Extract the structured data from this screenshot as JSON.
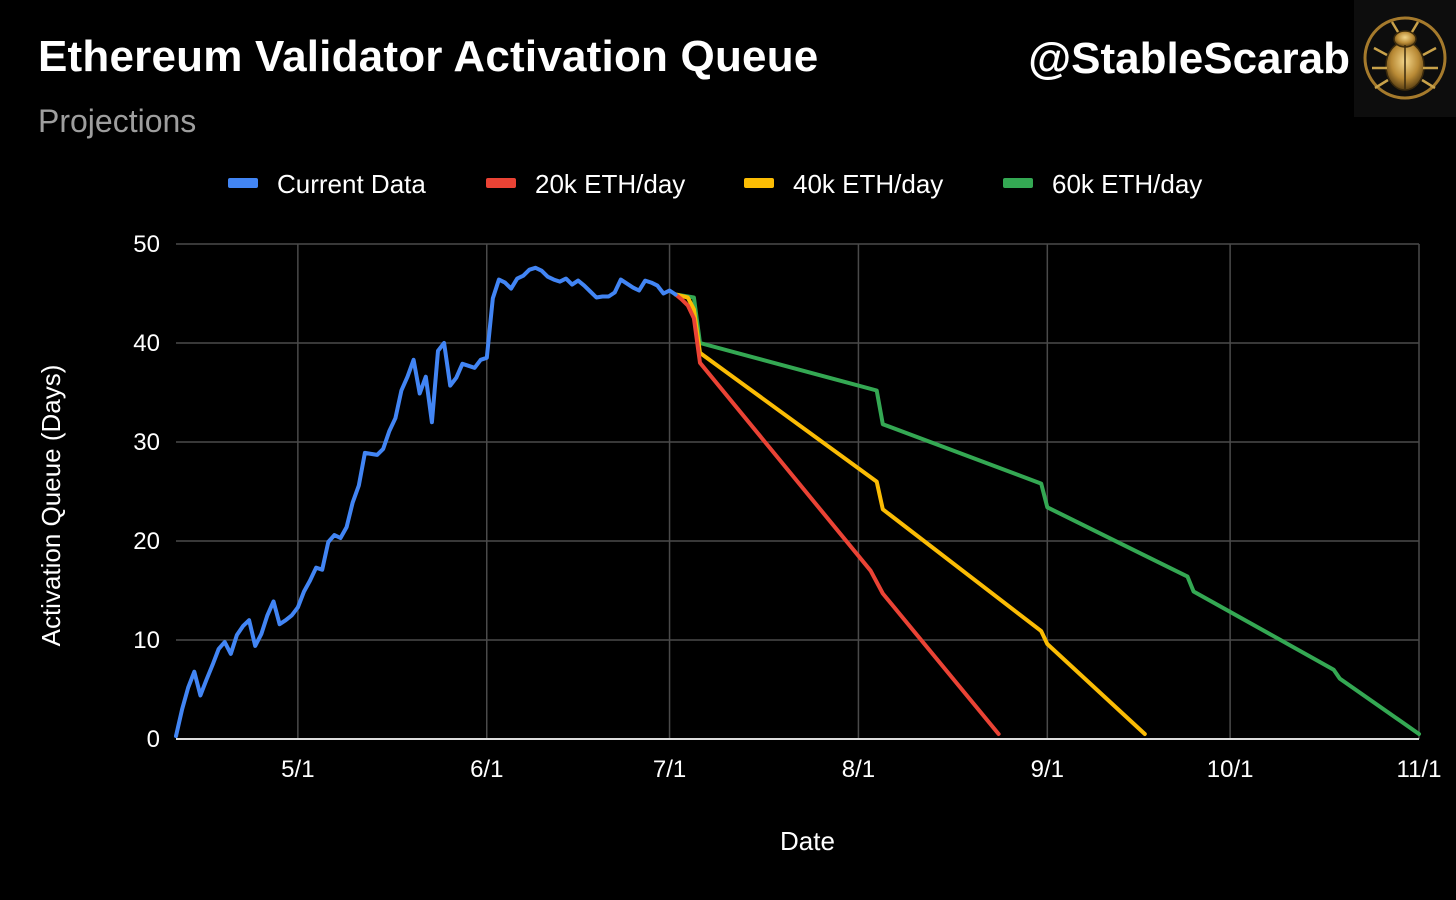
{
  "header": {
    "title": "Ethereum Validator Activation Queue",
    "subtitle": "Projections",
    "handle": "@StableScarab"
  },
  "logo": {
    "icon": "scarab-beetle-icon",
    "color": "#c9a24a"
  },
  "chart_data": {
    "type": "line",
    "title": "Ethereum Validator Activation Queue",
    "subtitle": "Projections",
    "xlabel": "Date",
    "ylabel": "Activation Queue (Days)",
    "ylim": [
      0,
      50
    ],
    "yticks": [
      0,
      10,
      20,
      30,
      40,
      50
    ],
    "xlim": [
      "2025-04-11",
      "2025-11-01"
    ],
    "xticks": [
      {
        "date": "2025-05-01",
        "label": "5/1"
      },
      {
        "date": "2025-06-01",
        "label": "6/1"
      },
      {
        "date": "2025-07-01",
        "label": "7/1"
      },
      {
        "date": "2025-08-01",
        "label": "8/1"
      },
      {
        "date": "2025-09-01",
        "label": "9/1"
      },
      {
        "date": "2025-10-01",
        "label": "10/1"
      },
      {
        "date": "2025-11-01",
        "label": "11/1"
      }
    ],
    "grid": true,
    "legend": "top",
    "series": [
      {
        "name": "Current Data",
        "color": "#4285F4",
        "points": [
          [
            "2025-04-11",
            0.3
          ],
          [
            "2025-04-12",
            3.0
          ],
          [
            "2025-04-13",
            5.2
          ],
          [
            "2025-04-14",
            6.8
          ],
          [
            "2025-04-15",
            4.4
          ],
          [
            "2025-04-16",
            6.0
          ],
          [
            "2025-04-17",
            7.5
          ],
          [
            "2025-04-18",
            9.1
          ],
          [
            "2025-04-19",
            9.8
          ],
          [
            "2025-04-20",
            8.6
          ],
          [
            "2025-04-21",
            10.5
          ],
          [
            "2025-04-22",
            11.4
          ],
          [
            "2025-04-23",
            12.0
          ],
          [
            "2025-04-24",
            9.4
          ],
          [
            "2025-04-25",
            10.6
          ],
          [
            "2025-04-26",
            12.5
          ],
          [
            "2025-04-27",
            13.9
          ],
          [
            "2025-04-28",
            11.6
          ],
          [
            "2025-04-29",
            12.0
          ],
          [
            "2025-04-30",
            12.5
          ],
          [
            "2025-05-01",
            13.3
          ],
          [
            "2025-05-02",
            14.9
          ],
          [
            "2025-05-03",
            16.0
          ],
          [
            "2025-05-04",
            17.3
          ],
          [
            "2025-05-05",
            17.1
          ],
          [
            "2025-05-06",
            19.9
          ],
          [
            "2025-05-07",
            20.6
          ],
          [
            "2025-05-08",
            20.3
          ],
          [
            "2025-05-09",
            21.4
          ],
          [
            "2025-05-10",
            23.9
          ],
          [
            "2025-05-11",
            25.6
          ],
          [
            "2025-05-12",
            28.9
          ],
          [
            "2025-05-13",
            28.8
          ],
          [
            "2025-05-14",
            28.7
          ],
          [
            "2025-05-15",
            29.3
          ],
          [
            "2025-05-16",
            31.1
          ],
          [
            "2025-05-17",
            32.4
          ],
          [
            "2025-05-18",
            35.2
          ],
          [
            "2025-05-19",
            36.6
          ],
          [
            "2025-05-20",
            38.3
          ],
          [
            "2025-05-21",
            34.9
          ],
          [
            "2025-05-22",
            36.6
          ],
          [
            "2025-05-23",
            32.0
          ],
          [
            "2025-05-24",
            39.2
          ],
          [
            "2025-05-25",
            40.0
          ],
          [
            "2025-05-26",
            35.7
          ],
          [
            "2025-05-27",
            36.5
          ],
          [
            "2025-05-28",
            37.9
          ],
          [
            "2025-05-29",
            37.7
          ],
          [
            "2025-05-30",
            37.5
          ],
          [
            "2025-05-31",
            38.3
          ],
          [
            "2025-06-01",
            38.5
          ],
          [
            "2025-06-02",
            44.5
          ],
          [
            "2025-06-03",
            46.4
          ],
          [
            "2025-06-04",
            46.1
          ],
          [
            "2025-06-05",
            45.5
          ],
          [
            "2025-06-06",
            46.5
          ],
          [
            "2025-06-07",
            46.8
          ],
          [
            "2025-06-08",
            47.4
          ],
          [
            "2025-06-09",
            47.6
          ],
          [
            "2025-06-10",
            47.3
          ],
          [
            "2025-06-11",
            46.7
          ],
          [
            "2025-06-12",
            46.4
          ],
          [
            "2025-06-13",
            46.2
          ],
          [
            "2025-06-14",
            46.5
          ],
          [
            "2025-06-15",
            45.9
          ],
          [
            "2025-06-16",
            46.3
          ],
          [
            "2025-06-17",
            45.8
          ],
          [
            "2025-06-18",
            45.2
          ],
          [
            "2025-06-19",
            44.6
          ],
          [
            "2025-06-20",
            44.7
          ],
          [
            "2025-06-21",
            44.7
          ],
          [
            "2025-06-22",
            45.1
          ],
          [
            "2025-06-23",
            46.4
          ],
          [
            "2025-06-24",
            46.0
          ],
          [
            "2025-06-25",
            45.6
          ],
          [
            "2025-06-26",
            45.3
          ],
          [
            "2025-06-27",
            46.3
          ],
          [
            "2025-06-28",
            46.1
          ],
          [
            "2025-06-29",
            45.8
          ],
          [
            "2025-06-30",
            45.0
          ],
          [
            "2025-07-01",
            45.3
          ],
          [
            "2025-07-02",
            44.9
          ]
        ]
      },
      {
        "name": "20k ETH/day",
        "color": "#EA4335",
        "points": [
          [
            "2025-07-02",
            44.9
          ],
          [
            "2025-07-03",
            44.4
          ],
          [
            "2025-07-04",
            43.8
          ],
          [
            "2025-07-05",
            42.5
          ],
          [
            "2025-07-06",
            38.0
          ],
          [
            "2025-08-03",
            17.0
          ],
          [
            "2025-08-05",
            14.7
          ],
          [
            "2025-08-24",
            0.5
          ]
        ]
      },
      {
        "name": "40k ETH/day",
        "color": "#FBBC04",
        "points": [
          [
            "2025-07-02",
            44.9
          ],
          [
            "2025-07-04",
            44.6
          ],
          [
            "2025-07-05",
            43.4
          ],
          [
            "2025-07-06",
            39.0
          ],
          [
            "2025-08-04",
            26.0
          ],
          [
            "2025-08-05",
            23.2
          ],
          [
            "2025-08-31",
            10.9
          ],
          [
            "2025-09-01",
            9.6
          ],
          [
            "2025-09-17",
            0.5
          ]
        ]
      },
      {
        "name": "60k ETH/day",
        "color": "#34A853",
        "points": [
          [
            "2025-07-02",
            44.9
          ],
          [
            "2025-07-05",
            44.6
          ],
          [
            "2025-07-06",
            40.0
          ],
          [
            "2025-08-04",
            35.2
          ],
          [
            "2025-08-05",
            31.8
          ],
          [
            "2025-08-31",
            25.8
          ],
          [
            "2025-09-01",
            23.4
          ],
          [
            "2025-09-24",
            16.4
          ],
          [
            "2025-09-25",
            14.9
          ],
          [
            "2025-10-18",
            7.0
          ],
          [
            "2025-10-19",
            6.1
          ],
          [
            "2025-11-01",
            0.5
          ]
        ]
      }
    ]
  }
}
